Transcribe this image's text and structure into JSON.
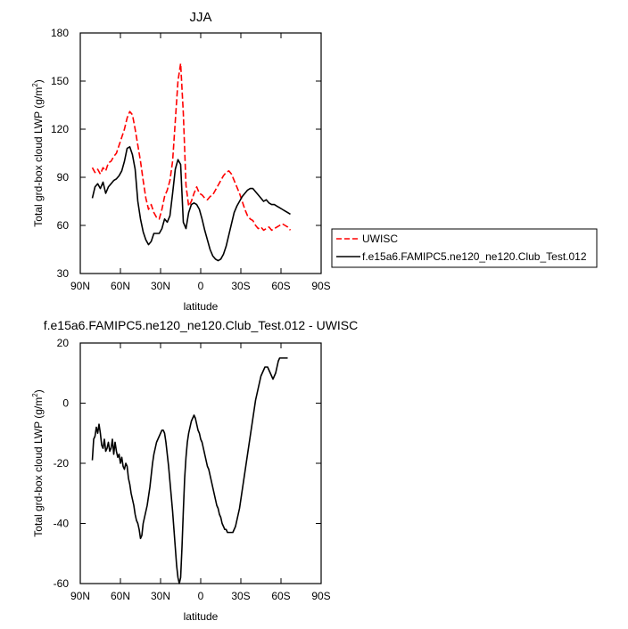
{
  "colors": {
    "uwisc": "#ff0000",
    "model": "#000000"
  },
  "chart_data": [
    {
      "type": "line",
      "title": "JJA",
      "xlabel": "latitude",
      "ylabel_main": "Total grd-box cloud LWP (g/m",
      "ylabel_sup": "2",
      "ylabel_end": ")",
      "ylim": [
        30,
        180
      ],
      "xlim": [
        90,
        -90
      ],
      "xticks": [
        90,
        60,
        30,
        0,
        -30,
        -60,
        -90
      ],
      "xtick_labels": [
        "90N",
        "60N",
        "30N",
        "0",
        "30S",
        "60S",
        "90S"
      ],
      "yticks": [
        30,
        60,
        90,
        120,
        150,
        180
      ],
      "ytick_labels": [
        "30",
        "60",
        "90",
        "120",
        "150",
        "180"
      ],
      "legend_position": "outside-right",
      "series": [
        {
          "name": "UWISC",
          "style": "dashed",
          "color": "#ff0000",
          "x": [
            81,
            79,
            77,
            75,
            73,
            71,
            69,
            67,
            65,
            63,
            61,
            59,
            57,
            55,
            53,
            51,
            49,
            47,
            45,
            43,
            41,
            39,
            37,
            35,
            33,
            31,
            29,
            27,
            25,
            23,
            21,
            19,
            17,
            15,
            13,
            11,
            9,
            7,
            5,
            3,
            1,
            -1,
            -3,
            -5,
            -7,
            -9,
            -11,
            -13,
            -15,
            -17,
            -19,
            -21,
            -23,
            -25,
            -27,
            -29,
            -31,
            -33,
            -35,
            -37,
            -39,
            -41,
            -43,
            -45,
            -47,
            -49,
            -51,
            -53,
            -55,
            -57,
            -59,
            -61,
            -63,
            -65,
            -67
          ],
          "y": [
            96,
            93,
            95,
            92,
            96,
            94,
            99,
            100,
            103,
            105,
            110,
            115,
            120,
            127,
            131,
            129,
            120,
            110,
            100,
            88,
            77,
            70,
            73,
            68,
            65,
            64,
            70,
            78,
            82,
            88,
            100,
            125,
            150,
            161,
            130,
            85,
            72,
            75,
            80,
            84,
            80,
            79,
            77,
            76,
            78,
            79,
            82,
            85,
            88,
            91,
            93,
            94,
            92,
            88,
            84,
            80,
            75,
            70,
            66,
            64,
            63,
            60,
            58,
            59,
            57,
            58,
            59,
            57,
            58,
            59,
            60,
            61,
            60,
            59,
            57
          ]
        },
        {
          "name": "f.e15a6.FAMIPC5.ne120_ne120.Club_Test.012",
          "style": "solid",
          "color": "#000000",
          "x": [
            81,
            79,
            77,
            75,
            73,
            71,
            69,
            67,
            65,
            63,
            61,
            59,
            57,
            55,
            53,
            51,
            49,
            47,
            45,
            43,
            41,
            39,
            37,
            35,
            33,
            31,
            29,
            27,
            25,
            23,
            21,
            19,
            17,
            15,
            13,
            11,
            9,
            7,
            5,
            3,
            1,
            -1,
            -3,
            -5,
            -7,
            -9,
            -11,
            -13,
            -15,
            -17,
            -19,
            -21,
            -23,
            -25,
            -27,
            -29,
            -31,
            -33,
            -35,
            -37,
            -39,
            -41,
            -43,
            -45,
            -47,
            -49,
            -51,
            -53,
            -55,
            -57,
            -59,
            -61,
            -63,
            -65,
            -67
          ],
          "y": [
            77,
            84,
            86,
            83,
            87,
            80,
            84,
            86,
            88,
            89,
            91,
            94,
            100,
            108,
            109,
            104,
            95,
            75,
            64,
            56,
            51,
            48,
            50,
            55,
            55,
            55,
            58,
            64,
            62,
            66,
            80,
            95,
            101,
            98,
            62,
            58,
            68,
            73,
            74,
            73,
            70,
            64,
            57,
            51,
            45,
            41,
            39,
            38,
            39,
            42,
            47,
            54,
            61,
            68,
            72,
            75,
            78,
            80,
            82,
            83,
            83,
            81,
            79,
            77,
            75,
            76,
            74,
            73,
            73,
            72,
            71,
            70,
            69,
            68,
            67
          ]
        }
      ]
    },
    {
      "type": "line",
      "title": "f.e15a6.FAMIPC5.ne120_ne120.Club_Test.012 - UWISC",
      "xlabel": "latitude",
      "ylabel_main": "Total grd-box cloud LWP (g/m",
      "ylabel_sup": "2",
      "ylabel_end": ")",
      "ylim": [
        -60,
        20
      ],
      "xlim": [
        90,
        -90
      ],
      "xticks": [
        90,
        60,
        30,
        0,
        -30,
        -60,
        -90
      ],
      "xtick_labels": [
        "90N",
        "60N",
        "30N",
        "0",
        "30S",
        "60S",
        "90S"
      ],
      "yticks": [
        -60,
        -40,
        -20,
        0,
        20
      ],
      "ytick_labels": [
        "-60",
        "-40",
        "-20",
        "0",
        "20"
      ],
      "series": [
        {
          "style": "solid",
          "color": "#000000",
          "x": [
            81,
            80,
            79,
            78,
            77,
            76,
            75,
            74,
            73,
            72,
            71,
            70,
            69,
            68,
            67,
            66,
            65,
            64,
            63,
            62,
            61,
            60,
            59,
            58,
            57,
            56,
            55,
            54,
            53,
            52,
            51,
            50,
            49,
            48,
            47,
            46,
            45,
            44,
            43,
            42,
            41,
            40,
            39,
            38,
            37,
            36,
            35,
            34,
            33,
            32,
            31,
            30,
            29,
            28,
            27,
            26,
            25,
            24,
            23,
            22,
            21,
            20,
            19,
            18,
            17,
            16,
            15,
            14,
            13,
            12,
            11,
            10,
            9,
            8,
            7,
            6,
            5,
            4,
            3,
            2,
            1,
            0,
            -1,
            -2,
            -3,
            -4,
            -5,
            -6,
            -7,
            -8,
            -9,
            -10,
            -11,
            -12,
            -13,
            -14,
            -15,
            -16,
            -17,
            -18,
            -19,
            -20,
            -21,
            -22,
            -23,
            -24,
            -25,
            -26,
            -27,
            -28,
            -29,
            -30,
            -31,
            -32,
            -33,
            -34,
            -35,
            -36,
            -37,
            -38,
            -39,
            -40,
            -41,
            -42,
            -43,
            -44,
            -45,
            -46,
            -47,
            -48,
            -49,
            -50,
            -51,
            -52,
            -53,
            -54,
            -55,
            -56,
            -57,
            -58,
            -59,
            -60,
            -61,
            -62,
            -63,
            -64,
            -65
          ],
          "y": [
            -19,
            -12,
            -11,
            -8,
            -10,
            -7,
            -10,
            -14,
            -15,
            -12,
            -16,
            -15,
            -13,
            -16,
            -15,
            -12,
            -17,
            -13,
            -16,
            -18,
            -17,
            -20,
            -18,
            -21,
            -22,
            -20,
            -21,
            -25,
            -27,
            -30,
            -32,
            -34,
            -37,
            -39,
            -40,
            -42,
            -45,
            -44,
            -40,
            -38,
            -36,
            -34,
            -31,
            -28,
            -24,
            -20,
            -17,
            -15,
            -13,
            -12,
            -11,
            -10,
            -9,
            -9,
            -10,
            -13,
            -17,
            -21,
            -26,
            -31,
            -36,
            -42,
            -48,
            -54,
            -58,
            -60,
            -58,
            -48,
            -36,
            -25,
            -18,
            -13,
            -10,
            -8,
            -6,
            -5,
            -4,
            -5,
            -7,
            -9,
            -10,
            -12,
            -13,
            -15,
            -17,
            -19,
            -21,
            -22,
            -24,
            -26,
            -28,
            -30,
            -32,
            -34,
            -35,
            -37,
            -38,
            -40,
            -41,
            -42,
            -42,
            -43,
            -43,
            -43,
            -43,
            -43,
            -42,
            -41,
            -39,
            -37,
            -35,
            -32,
            -29,
            -26,
            -23,
            -20,
            -17,
            -14,
            -11,
            -8,
            -5,
            -2,
            1,
            3,
            5,
            7,
            9,
            10,
            11,
            12,
            12,
            12,
            11,
            10,
            9,
            8,
            9,
            10,
            12,
            14,
            15,
            15,
            15,
            15,
            15,
            15,
            15
          ]
        }
      ]
    }
  ]
}
